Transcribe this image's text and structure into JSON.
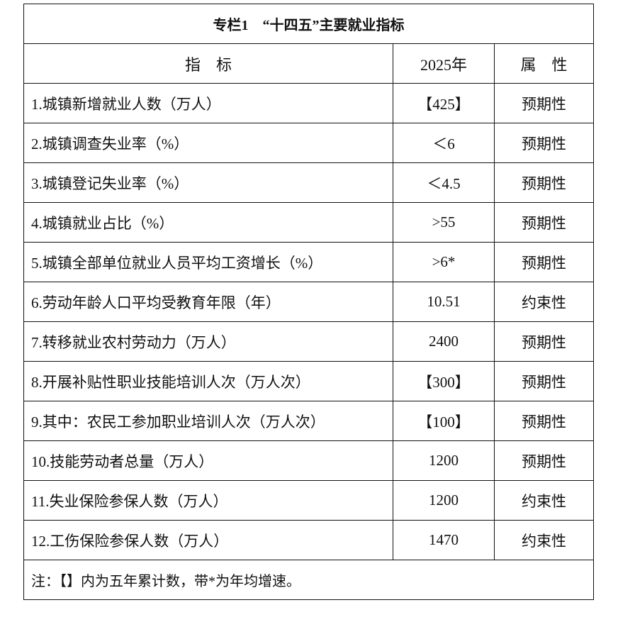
{
  "title": "专栏1　“十四五”主要就业指标",
  "headers": {
    "indicator": "指　标",
    "year": "2025年",
    "attribute": "属　性"
  },
  "rows": [
    {
      "indicator": "1.城镇新增就业人数（万人）",
      "value": "【425】",
      "attribute": "预期性"
    },
    {
      "indicator": "2.城镇调查失业率（%）",
      "value": "＜6",
      "attribute": "预期性"
    },
    {
      "indicator": "3.城镇登记失业率（%）",
      "value": "＜4.5",
      "attribute": "预期性"
    },
    {
      "indicator": "4.城镇就业占比（%）",
      "value": ">55",
      "attribute": "预期性"
    },
    {
      "indicator": "5.城镇全部单位就业人员平均工资增长（%）",
      "value": ">6*",
      "attribute": "预期性"
    },
    {
      "indicator": "6.劳动年龄人口平均受教育年限（年）",
      "value": "10.51",
      "attribute": "约束性"
    },
    {
      "indicator": "7.转移就业农村劳动力（万人）",
      "value": "2400",
      "attribute": "预期性"
    },
    {
      "indicator": "8.开展补贴性职业技能培训人次（万人次）",
      "value": "【300】",
      "attribute": "预期性"
    },
    {
      "indicator": "9.其中：农民工参加职业培训人次（万人次）",
      "value": "【100】",
      "attribute": "预期性"
    },
    {
      "indicator": "10.技能劳动者总量（万人）",
      "value": "1200",
      "attribute": "预期性"
    },
    {
      "indicator": "11.失业保险参保人数（万人）",
      "value": "1200",
      "attribute": "约束性"
    },
    {
      "indicator": "12.工伤保险参保人数（万人）",
      "value": "1470",
      "attribute": "约束性"
    }
  ],
  "note": "注：【】内为五年累计数，带*为年均增速。"
}
